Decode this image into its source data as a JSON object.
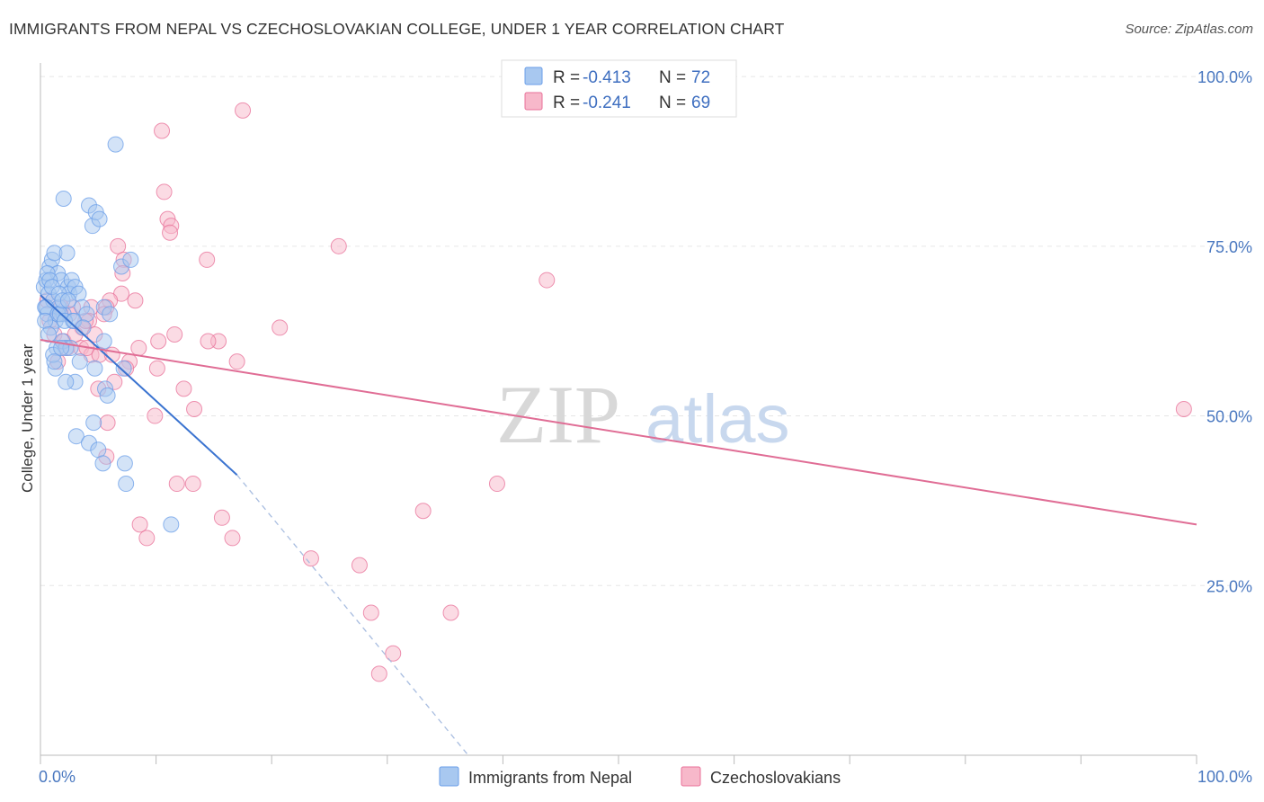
{
  "title": "IMMIGRANTS FROM NEPAL VS CZECHOSLOVAKIAN COLLEGE, UNDER 1 YEAR CORRELATION CHART",
  "source": "Source: ZipAtlas.com",
  "watermark": {
    "zip": "ZIP",
    "atlas": "atlas"
  },
  "legend_top": [
    {
      "r_label": "R = ",
      "r_value": "-0.413",
      "n_label": "N = ",
      "n_value": "72",
      "color": "#a8c8f0"
    },
    {
      "r_label": "R = ",
      "r_value": "-0.241",
      "n_label": "N = ",
      "n_value": "69",
      "color": "#f7b8ca"
    }
  ],
  "chart_data": {
    "type": "scatter",
    "title": "IMMIGRANTS FROM NEPAL VS CZECHOSLOVAKIAN COLLEGE, UNDER 1 YEAR CORRELATION CHART",
    "xlabel": "",
    "ylabel": "College, Under 1 year",
    "xlim": [
      0,
      100
    ],
    "ylim": [
      0,
      102
    ],
    "x_tick_labels": [
      "0.0%",
      "100.0%"
    ],
    "y_ticks": [
      25,
      50,
      75,
      100
    ],
    "y_tick_labels": [
      "25.0%",
      "50.0%",
      "75.0%",
      "100.0%"
    ],
    "series": [
      {
        "name": "Immigrants from Nepal",
        "color": "#6a9ee8",
        "fill": "#a8c8f0",
        "R": -0.413,
        "N": 72,
        "trend": {
          "x0": 0,
          "y0": 67.8,
          "x1": 17,
          "y1": 41.3,
          "dash_to_x": 37,
          "dash_to_y": 0
        },
        "points": [
          [
            0.3,
            69
          ],
          [
            0.5,
            70
          ],
          [
            0.8,
            72
          ],
          [
            0.4,
            66
          ],
          [
            0.6,
            65
          ],
          [
            1.0,
            73
          ],
          [
            1.2,
            74
          ],
          [
            1.5,
            71
          ],
          [
            0.7,
            68
          ],
          [
            1.1,
            67
          ],
          [
            1.8,
            70
          ],
          [
            1.3,
            64
          ],
          [
            2.0,
            65
          ],
          [
            2.4,
            69
          ],
          [
            2.7,
            70
          ],
          [
            1.6,
            66
          ],
          [
            1.4,
            60
          ],
          [
            1.9,
            61
          ],
          [
            2.2,
            60
          ],
          [
            2.5,
            68
          ],
          [
            3.0,
            69
          ],
          [
            2.8,
            64
          ],
          [
            3.3,
            68
          ],
          [
            3.6,
            66
          ],
          [
            2.3,
            74
          ],
          [
            2.0,
            82
          ],
          [
            4.2,
            81
          ],
          [
            4.5,
            78
          ],
          [
            4.8,
            80
          ],
          [
            5.1,
            79
          ],
          [
            6.5,
            90
          ],
          [
            7.0,
            72
          ],
          [
            7.8,
            73
          ],
          [
            4.0,
            65
          ],
          [
            5.5,
            66
          ],
          [
            6.0,
            65
          ],
          [
            2.6,
            60
          ],
          [
            3.4,
            58
          ],
          [
            3.0,
            55
          ],
          [
            4.7,
            57
          ],
          [
            2.2,
            55
          ],
          [
            1.3,
            57
          ],
          [
            1.1,
            59
          ],
          [
            5.5,
            61
          ],
          [
            7.2,
            57
          ],
          [
            5.6,
            54
          ],
          [
            5.8,
            53
          ],
          [
            4.6,
            49
          ],
          [
            3.1,
            47
          ],
          [
            4.2,
            46
          ],
          [
            5.0,
            45
          ],
          [
            5.4,
            43
          ],
          [
            7.3,
            43
          ],
          [
            7.4,
            40
          ],
          [
            11.3,
            34
          ],
          [
            0.5,
            66
          ],
          [
            0.9,
            63
          ],
          [
            1.5,
            65
          ],
          [
            1.7,
            65
          ],
          [
            2.1,
            64
          ],
          [
            2.9,
            64
          ],
          [
            3.7,
            63
          ],
          [
            0.6,
            71
          ],
          [
            0.8,
            70
          ],
          [
            1.0,
            69
          ],
          [
            1.6,
            68
          ],
          [
            1.9,
            67
          ],
          [
            2.4,
            67
          ],
          [
            0.4,
            64
          ],
          [
            0.7,
            62
          ],
          [
            1.2,
            58
          ],
          [
            1.8,
            60
          ]
        ]
      },
      {
        "name": "Czechoslovakians",
        "color": "#e87098",
        "fill": "#f7b8ca",
        "R": -0.241,
        "N": 69,
        "trend": {
          "x0": 0,
          "y0": 61.2,
          "x1": 100,
          "y1": 34.0
        },
        "points": [
          [
            17.5,
            95
          ],
          [
            10.5,
            92
          ],
          [
            10.7,
            83
          ],
          [
            11.0,
            79
          ],
          [
            11.3,
            78
          ],
          [
            11.2,
            77
          ],
          [
            25.8,
            75
          ],
          [
            6.7,
            75
          ],
          [
            7.2,
            73
          ],
          [
            14.4,
            73
          ],
          [
            7.1,
            71
          ],
          [
            43.8,
            70
          ],
          [
            7.0,
            68
          ],
          [
            8.2,
            67
          ],
          [
            6.0,
            67
          ],
          [
            5.7,
            66
          ],
          [
            4.4,
            66
          ],
          [
            2.8,
            66
          ],
          [
            5.5,
            65
          ],
          [
            4.2,
            64
          ],
          [
            3.6,
            63
          ],
          [
            20.7,
            63
          ],
          [
            11.6,
            62
          ],
          [
            15.4,
            61
          ],
          [
            14.5,
            61
          ],
          [
            8.5,
            60
          ],
          [
            10.2,
            61
          ],
          [
            2.3,
            60
          ],
          [
            3.5,
            60
          ],
          [
            4.4,
            59
          ],
          [
            4.0,
            60
          ],
          [
            5.1,
            59
          ],
          [
            17.0,
            58
          ],
          [
            1.5,
            58
          ],
          [
            7.7,
            58
          ],
          [
            10.1,
            57
          ],
          [
            7.4,
            57
          ],
          [
            6.4,
            55
          ],
          [
            12.4,
            54
          ],
          [
            5.0,
            54
          ],
          [
            13.3,
            51
          ],
          [
            9.9,
            50
          ],
          [
            98.9,
            51
          ],
          [
            5.8,
            49
          ],
          [
            5.7,
            44
          ],
          [
            11.8,
            40
          ],
          [
            13.2,
            40
          ],
          [
            39.5,
            40
          ],
          [
            33.1,
            36
          ],
          [
            15.7,
            35
          ],
          [
            8.6,
            34
          ],
          [
            9.2,
            32
          ],
          [
            16.6,
            32
          ],
          [
            23.4,
            29
          ],
          [
            27.6,
            28
          ],
          [
            28.6,
            21
          ],
          [
            35.5,
            21
          ],
          [
            30.5,
            15
          ],
          [
            29.3,
            12
          ],
          [
            0.8,
            64
          ],
          [
            1.2,
            62
          ],
          [
            2.0,
            61
          ],
          [
            3.0,
            62
          ],
          [
            0.6,
            67
          ],
          [
            1.8,
            66
          ],
          [
            2.5,
            65
          ],
          [
            3.9,
            64
          ],
          [
            4.7,
            62
          ],
          [
            6.2,
            59
          ]
        ]
      }
    ]
  },
  "bottom_legend": [
    {
      "label": "Immigrants from Nepal",
      "color": "#a8c8f0",
      "stroke": "#6a9ee8"
    },
    {
      "label": "Czechoslovakians",
      "color": "#f7b8ca",
      "stroke": "#e87098"
    }
  ]
}
